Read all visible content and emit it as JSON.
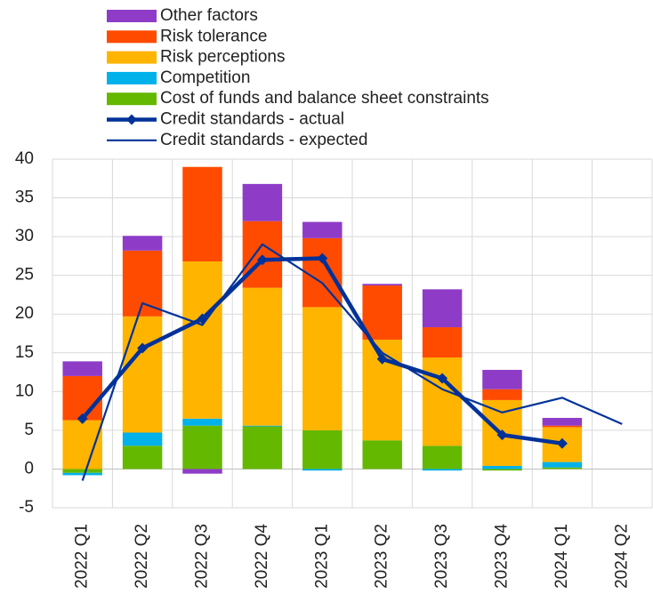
{
  "chart_data": {
    "type": "stacked-bar-line",
    "categories": [
      "2022 Q1",
      "2022 Q2",
      "2022 Q3",
      "2022 Q4",
      "2023 Q1",
      "2023 Q2",
      "2023 Q3",
      "2023 Q4",
      "2024 Q1",
      "2024 Q2"
    ],
    "series": [
      {
        "name": "Cost of funds and balance sheet constraints",
        "color": "#65b800",
        "kind": "bar",
        "values": [
          -0.5,
          3.0,
          5.6,
          5.5,
          5.0,
          3.7,
          3.0,
          -0.2,
          0.2,
          null
        ]
      },
      {
        "name": "Competition",
        "color": "#00b1ea",
        "kind": "bar",
        "values": [
          -0.3,
          1.7,
          0.9,
          0.1,
          -0.2,
          0,
          -0.2,
          0.4,
          0.7,
          null
        ]
      },
      {
        "name": "Risk perceptions",
        "color": "#ffb400",
        "kind": "bar",
        "values": [
          6.3,
          15.0,
          20.3,
          17.8,
          15.9,
          13.0,
          11.4,
          8.5,
          4.5,
          null
        ]
      },
      {
        "name": "Risk tolerance",
        "color": "#ff4b00",
        "kind": "bar",
        "values": [
          5.7,
          8.5,
          12.2,
          8.6,
          8.9,
          7.0,
          3.9,
          1.4,
          0.2,
          null
        ]
      },
      {
        "name": "Other factors",
        "color": "#8e3cc8",
        "kind": "bar",
        "values": [
          1.9,
          1.9,
          -0.6,
          4.8,
          2.1,
          0.2,
          4.9,
          2.5,
          1.0,
          null
        ]
      },
      {
        "name": "Credit standards - actual",
        "color": "#003299",
        "kind": "line-marker",
        "values": [
          6.5,
          15.6,
          19.4,
          27.0,
          27.2,
          14.2,
          11.7,
          4.4,
          3.3,
          null
        ]
      },
      {
        "name": "Credit standards - expected",
        "color": "#003299",
        "kind": "line",
        "values": [
          -1.5,
          21.4,
          18.6,
          29.0,
          24.0,
          15.0,
          10.3,
          7.3,
          9.2,
          5.8
        ]
      }
    ],
    "ylim": [
      -5,
      40
    ],
    "yticks": [
      -5,
      0,
      5,
      10,
      15,
      20,
      25,
      30,
      35,
      40
    ],
    "grid": true
  }
}
